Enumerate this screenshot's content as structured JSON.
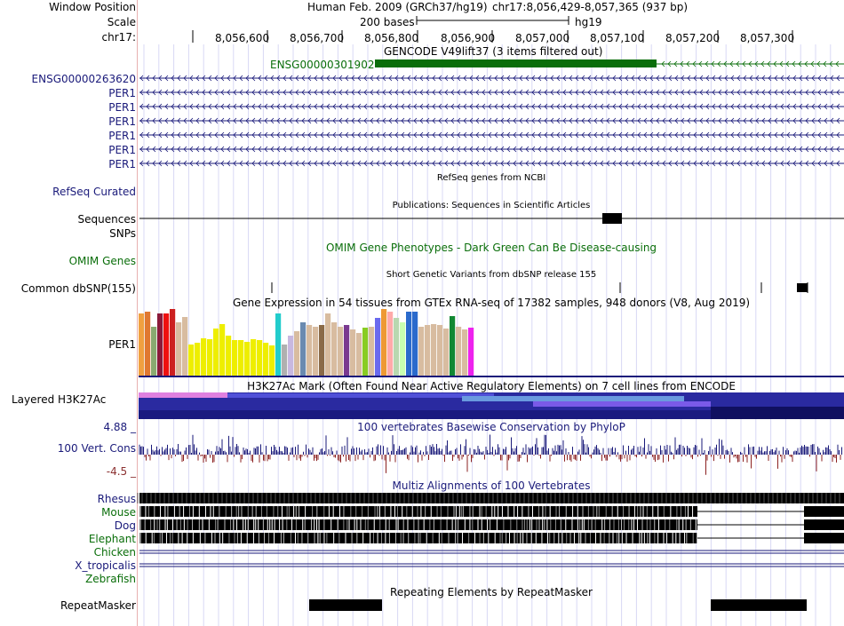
{
  "header": {
    "window_position_label": "Window Position",
    "scale_label": "Scale",
    "chrom_label": "chr17:",
    "assembly": "Human Feb. 2009 (GRCh37/hg19)",
    "position": "chr17:8,056,429-8,057,365 (937 bp)",
    "scale_text": "200 bases",
    "scale_db": "hg19",
    "ruler_ticks": [
      "8,056,600",
      "8,056,700",
      "8,056,800",
      "8,056,900",
      "8,057,000",
      "8,057,100",
      "8,057,200",
      "8,057,300"
    ]
  },
  "gencode": {
    "title": "GENCODE V49lift37 (3 items filtered out)",
    "feature_label": "ENSG00000301902",
    "genes": [
      "ENSG00000263620",
      "PER1",
      "PER1",
      "PER1",
      "PER1",
      "PER1",
      "PER1"
    ]
  },
  "refseq": {
    "title": "RefSeq genes from NCBI",
    "label": "RefSeq Curated"
  },
  "publications": {
    "title": "Publications: Sequences in Scientific Articles",
    "label": "Sequences"
  },
  "snps": {
    "label": "SNPs"
  },
  "omim": {
    "title": "OMIM Gene Phenotypes - Dark Green Can Be Disease-causing",
    "label": "OMIM Genes"
  },
  "dbsnp": {
    "title": "Short Genetic Variants from dbSNP release 155",
    "label": "Common dbSNP(155)"
  },
  "gtex": {
    "title": "Gene Expression in 54 tissues from GTEx RNA-seq of 17382 samples, 948 donors (V8, Aug 2019)",
    "label": "PER1",
    "bars": [
      {
        "color": "#f0a040",
        "value": 70
      },
      {
        "color": "#e07830",
        "value": 72
      },
      {
        "color": "#8aaa70",
        "value": 55
      },
      {
        "color": "#8b1a3a",
        "value": 70
      },
      {
        "color": "#ee1010",
        "value": 70
      },
      {
        "color": "#cc2020",
        "value": 75
      },
      {
        "color": "#d8bca0",
        "value": 60
      },
      {
        "color": "#d8bca0",
        "value": 66
      },
      {
        "color": "#eeee00",
        "value": 35
      },
      {
        "color": "#eeee00",
        "value": 37
      },
      {
        "color": "#eeee00",
        "value": 42
      },
      {
        "color": "#eeee00",
        "value": 41
      },
      {
        "color": "#eeee00",
        "value": 53
      },
      {
        "color": "#eeee00",
        "value": 58
      },
      {
        "color": "#eeee00",
        "value": 45
      },
      {
        "color": "#eeee00",
        "value": 40
      },
      {
        "color": "#eeee00",
        "value": 40
      },
      {
        "color": "#eeee00",
        "value": 38
      },
      {
        "color": "#eeee00",
        "value": 41
      },
      {
        "color": "#eeee00",
        "value": 40
      },
      {
        "color": "#eeee00",
        "value": 37
      },
      {
        "color": "#eeee00",
        "value": 34
      },
      {
        "color": "#22cccc",
        "value": 70
      },
      {
        "color": "#b0b0b0",
        "value": 35
      },
      {
        "color": "#c8b8e0",
        "value": 45
      },
      {
        "color": "#d8bca0",
        "value": 50
      },
      {
        "color": "#6a8ab0",
        "value": 60
      },
      {
        "color": "#d8bca0",
        "value": 57
      },
      {
        "color": "#d8bca0",
        "value": 55
      },
      {
        "color": "#8a6a48",
        "value": 57
      },
      {
        "color": "#d8bca0",
        "value": 70
      },
      {
        "color": "#d8bca0",
        "value": 60
      },
      {
        "color": "#d8bca0",
        "value": 55
      },
      {
        "color": "#7a3a90",
        "value": 57
      },
      {
        "color": "#d8bca0",
        "value": 52
      },
      {
        "color": "#d8bca0",
        "value": 48
      },
      {
        "color": "#88cc22",
        "value": 54
      },
      {
        "color": "#d8bca0",
        "value": 55
      },
      {
        "color": "#6a6aee",
        "value": 65
      },
      {
        "color": "#ee9933",
        "value": 75
      },
      {
        "color": "#ffaaaa",
        "value": 72
      },
      {
        "color": "#b8d8b0",
        "value": 65
      },
      {
        "color": "#c8ffb0",
        "value": 60
      },
      {
        "color": "#2a6acc",
        "value": 72
      },
      {
        "color": "#2a6acc",
        "value": 72
      },
      {
        "color": "#d8bca0",
        "value": 55
      },
      {
        "color": "#d8bca0",
        "value": 57
      },
      {
        "color": "#d8bca0",
        "value": 58
      },
      {
        "color": "#d8bca0",
        "value": 57
      },
      {
        "color": "#d8bca0",
        "value": 53
      },
      {
        "color": "#118833",
        "value": 67
      },
      {
        "color": "#d8bca0",
        "value": 55
      },
      {
        "color": "#d8bca0",
        "value": 52
      },
      {
        "color": "#ee22ee",
        "value": 54
      }
    ]
  },
  "h3k27ac": {
    "title": "H3K27Ac Mark (Often Found Near Active Regulatory Elements) on 7 cell lines from ENCODE",
    "label": "Layered H3K27Ac"
  },
  "conservation": {
    "title": "100 vertebrates Basewise Conservation by PhyloP",
    "label": "100 Vert. Cons",
    "ymax": "4.88 _",
    "ymin": "-4.5 _"
  },
  "multiz": {
    "title": "Multiz Alignments of 100 Vertebrates",
    "species": [
      "Rhesus",
      "Mouse",
      "Dog",
      "Elephant",
      "Chicken",
      "X_tropicalis",
      "Zebrafish"
    ]
  },
  "repeatmasker": {
    "title": "Repeating Elements by RepeatMasker",
    "label": "RepeatMasker"
  },
  "colors": {
    "navy": "#00007a",
    "green": "#006600",
    "label_blue": "#1a1a7a",
    "gencode_green": "#0a6e0a",
    "cons_pos": "#1a1a7a",
    "cons_neg": "#8b2020",
    "ymin": "#8b3030"
  }
}
